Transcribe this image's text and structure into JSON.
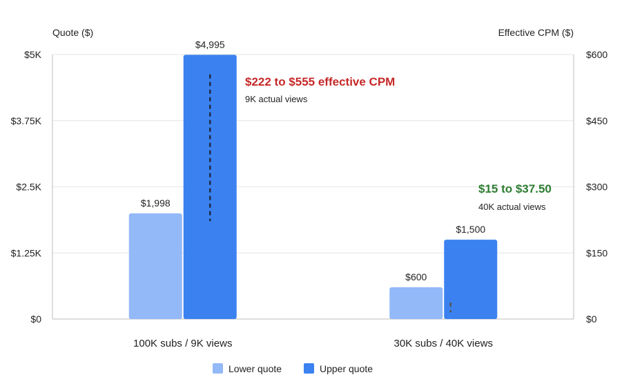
{
  "chart_data": {
    "type": "bar",
    "title": "",
    "categories": [
      "100K subs / 9K views",
      "30K subs / 40K views"
    ],
    "series": [
      {
        "name": "Lower quote",
        "values": [
          1998,
          600
        ],
        "color": "#93b9f8",
        "value_labels": [
          "$1,998",
          "$600"
        ]
      },
      {
        "name": "Upper quote",
        "values": [
          4995,
          1500
        ],
        "color": "#3b82f0",
        "value_labels": [
          "$4,995",
          "$1,500"
        ]
      }
    ],
    "y_left": {
      "label": "Quote ($)",
      "range": [
        0,
        5000
      ],
      "ticks": [
        0,
        1250,
        2500,
        3750,
        5000
      ],
      "tick_labels": [
        "$0",
        "$1.25K",
        "$2.5K",
        "$3.75K",
        "$5K"
      ]
    },
    "y_right": {
      "label": "Effective CPM ($)",
      "range": [
        0,
        600
      ],
      "ticks": [
        0,
        150,
        300,
        450,
        600
      ],
      "tick_labels": [
        "$0",
        "$150",
        "$300",
        "$450",
        "$600"
      ]
    },
    "cpm_ranges": [
      {
        "category": "100K subs / 9K views",
        "low": 222,
        "high": 555,
        "color": "#1f2a44"
      },
      {
        "category": "30K subs / 40K views",
        "low": 15,
        "high": 37.5,
        "color": "#555555"
      }
    ],
    "annotations": [
      {
        "title": "$222 to $555 effective CPM",
        "subtitle": "9K actual views",
        "color": "#c62828"
      },
      {
        "title": "$15 to $37.50",
        "subtitle": "40K actual views",
        "color": "#2e7d32"
      }
    ],
    "legend_position": "bottom",
    "grid": true
  }
}
